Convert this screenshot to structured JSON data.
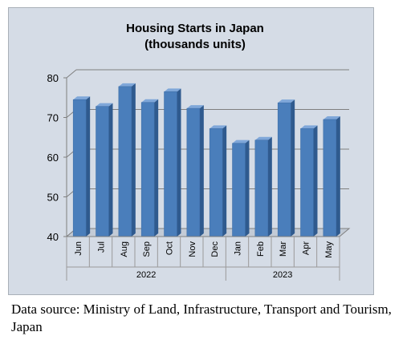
{
  "chart_data": {
    "type": "bar",
    "title": "Housing Starts in Japan",
    "subtitle": "(thousands units)",
    "categories": [
      "Jun",
      "Jul",
      "Aug",
      "Sep",
      "Oct",
      "Nov",
      "Dec",
      "Jan",
      "Feb",
      "Mar",
      "Apr",
      "May"
    ],
    "groups": [
      {
        "label": "2022",
        "categories": [
          "Jun",
          "Jul",
          "Aug",
          "Sep",
          "Oct",
          "Nov",
          "Dec"
        ]
      },
      {
        "label": "2023",
        "categories": [
          "Jan",
          "Feb",
          "Mar",
          "Apr",
          "May"
        ]
      }
    ],
    "values": [
      74.5,
      72.8,
      77.8,
      73.8,
      76.5,
      72.3,
      67.2,
      63.5,
      64.3,
      73.7,
      67.2,
      69.5
    ],
    "ylim": [
      40,
      80
    ],
    "yticks": [
      40,
      50,
      60,
      70,
      80
    ],
    "grid": true,
    "bar_color": "#4a7ebb",
    "background_color": "#d5dce6"
  },
  "source_note": "Data source: Ministry of Land, Infrastructure, Transport and Tourism, Japan"
}
